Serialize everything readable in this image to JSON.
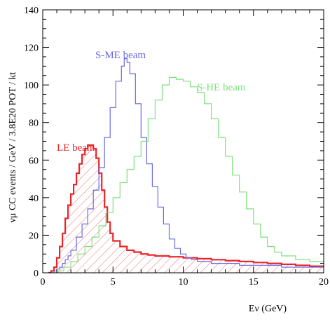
{
  "chart_data": {
    "type": "line",
    "title": "",
    "xlabel": "Eν (GeV)",
    "ylabel": "νμ CC events / GeV / 3.8E20 POT / kt",
    "xlim": [
      0,
      20
    ],
    "ylim": [
      0,
      140
    ],
    "x_ticks": [
      0,
      5,
      10,
      15,
      20
    ],
    "y_ticks": [
      0,
      20,
      40,
      60,
      80,
      100,
      120,
      140
    ],
    "grid": false,
    "legend": "none",
    "series": [
      {
        "name": "LE beam",
        "color": "#e8262a",
        "hatched": true,
        "x": [
          0.4,
          0.6,
          0.8,
          1.0,
          1.2,
          1.4,
          1.6,
          1.8,
          2.0,
          2.2,
          2.4,
          2.6,
          2.8,
          3.0,
          3.2,
          3.4,
          3.6,
          3.8,
          4.0,
          4.2,
          4.4,
          4.6,
          4.8,
          5.0,
          5.5,
          6.0,
          6.5,
          7.0,
          7.5,
          8.0,
          9.0,
          10.0,
          11.0,
          12.0,
          13.0,
          14.0,
          15.0,
          16.0,
          17.0,
          18.0,
          19.0,
          20.0
        ],
        "values": [
          0,
          1,
          3,
          8,
          14,
          21,
          29,
          36,
          42,
          47,
          53,
          58,
          63,
          66,
          68,
          68,
          66,
          61,
          53,
          44,
          35,
          27,
          21,
          17,
          14,
          12,
          11,
          10,
          9.5,
          9,
          8.5,
          8,
          7.5,
          7,
          6.5,
          6,
          5.5,
          5,
          4.5,
          4,
          3.5,
          3
        ]
      },
      {
        "name": "S-ME beam",
        "color": "#6a6ae6",
        "hatched": false,
        "x": [
          0.4,
          0.6,
          0.8,
          1.0,
          1.2,
          1.4,
          1.6,
          1.8,
          2.0,
          2.4,
          2.8,
          3.2,
          3.6,
          4.0,
          4.4,
          4.8,
          5.2,
          5.6,
          5.8,
          6.0,
          6.2,
          6.6,
          7.0,
          7.4,
          7.8,
          8.2,
          8.6,
          9.0,
          9.4,
          9.8,
          10.2,
          10.6,
          11.0,
          12.0,
          13.0,
          14.0,
          15.0,
          16.0,
          17.0,
          18.0,
          19.0,
          20.0
        ],
        "values": [
          0,
          0,
          1,
          2,
          3,
          5,
          7,
          9,
          12,
          19,
          26,
          34,
          44,
          56,
          72,
          88,
          102,
          110,
          114,
          112,
          106,
          90,
          72,
          58,
          46,
          35,
          26,
          18,
          13,
          10,
          8,
          7,
          6,
          5,
          5,
          4,
          4,
          4,
          3,
          3,
          3,
          3
        ]
      },
      {
        "name": "S-HE beam",
        "color": "#7ee07e",
        "hatched": false,
        "x": [
          0.6,
          1.0,
          1.5,
          2.0,
          2.5,
          3.0,
          3.5,
          4.0,
          4.5,
          5.0,
          5.5,
          6.0,
          6.5,
          7.0,
          7.5,
          8.0,
          8.5,
          9.0,
          9.5,
          10.0,
          10.5,
          11.0,
          11.5,
          12.0,
          12.5,
          13.0,
          13.5,
          14.0,
          14.5,
          15.0,
          15.5,
          16.0,
          16.5,
          17.0,
          18.0,
          19.0,
          20.0
        ],
        "values": [
          0,
          1,
          3,
          6,
          10,
          14,
          19,
          25,
          32,
          40,
          48,
          55,
          62,
          70,
          82,
          92,
          100,
          104,
          103,
          102,
          99,
          96,
          90,
          82,
          72,
          62,
          52,
          43,
          34,
          26,
          19,
          14,
          11,
          9,
          7,
          6,
          5
        ]
      }
    ],
    "annotations": [
      {
        "text": "LE beam",
        "series": "LE beam"
      },
      {
        "text": "S-ME beam",
        "series": "S-ME beam"
      },
      {
        "text": "S-HE beam",
        "series": "S-HE beam"
      }
    ]
  }
}
